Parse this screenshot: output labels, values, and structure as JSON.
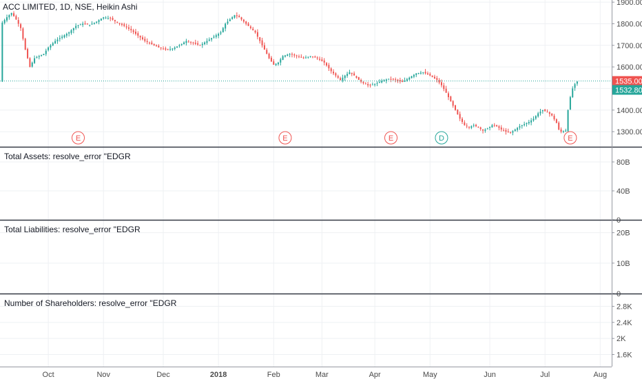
{
  "chart_data": [
    {
      "type": "candlestick",
      "title": "ACC LIMITED, 1D, NSE, Heikin Ashi",
      "ylim": [
        1230,
        1910
      ],
      "y_ticks": [
        {
          "value": 1900,
          "label": "1900.00"
        },
        {
          "value": 1800,
          "label": "1800.00"
        },
        {
          "value": 1700,
          "label": "1700.00"
        },
        {
          "value": 1600,
          "label": "1600.00"
        },
        {
          "value": 1500,
          "label": "1500.00"
        },
        {
          "value": 1400,
          "label": "1400.00"
        },
        {
          "value": 1300,
          "label": "1300.00"
        }
      ],
      "x_ticks": [
        "Oct",
        "Nov",
        "Dec",
        "2018",
        "Feb",
        "Mar",
        "Apr",
        "May",
        "Jun",
        "Jul",
        "Aug"
      ],
      "x_tick_positions": [
        1,
        25,
        51,
        75,
        99,
        120,
        143,
        167,
        193,
        217,
        241
      ],
      "price_path": [
        [
          -19,
          1805
        ],
        [
          -17,
          1830
        ],
        [
          -15,
          1850
        ],
        [
          -13,
          1820
        ],
        [
          -11,
          1780
        ],
        [
          -9,
          1680
        ],
        [
          -7,
          1600
        ],
        [
          -5,
          1640
        ],
        [
          -3,
          1650
        ],
        [
          -1,
          1660
        ],
        [
          1,
          1690
        ],
        [
          4,
          1720
        ],
        [
          7,
          1740
        ],
        [
          10,
          1760
        ],
        [
          13,
          1790
        ],
        [
          16,
          1800
        ],
        [
          19,
          1795
        ],
        [
          22,
          1810
        ],
        [
          25,
          1830
        ],
        [
          28,
          1825
        ],
        [
          31,
          1805
        ],
        [
          34,
          1790
        ],
        [
          37,
          1770
        ],
        [
          40,
          1745
        ],
        [
          43,
          1720
        ],
        [
          46,
          1705
        ],
        [
          49,
          1690
        ],
        [
          52,
          1680
        ],
        [
          55,
          1685
        ],
        [
          58,
          1700
        ],
        [
          61,
          1720
        ],
        [
          64,
          1710
        ],
        [
          67,
          1700
        ],
        [
          70,
          1720
        ],
        [
          73,
          1740
        ],
        [
          76,
          1760
        ],
        [
          78,
          1800
        ],
        [
          80,
          1820
        ],
        [
          82,
          1840
        ],
        [
          84,
          1830
        ],
        [
          86,
          1810
        ],
        [
          88,
          1790
        ],
        [
          91,
          1760
        ],
        [
          93,
          1720
        ],
        [
          95,
          1680
        ],
        [
          97,
          1640
        ],
        [
          99,
          1610
        ],
        [
          101,
          1620
        ],
        [
          103,
          1650
        ],
        [
          106,
          1660
        ],
        [
          109,
          1650
        ],
        [
          112,
          1640
        ],
        [
          115,
          1650
        ],
        [
          118,
          1640
        ],
        [
          121,
          1620
        ],
        [
          124,
          1580
        ],
        [
          126,
          1560
        ],
        [
          128,
          1540
        ],
        [
          130,
          1560
        ],
        [
          132,
          1575
        ],
        [
          134,
          1560
        ],
        [
          136,
          1540
        ],
        [
          138,
          1525
        ],
        [
          140,
          1515
        ],
        [
          143,
          1520
        ],
        [
          146,
          1535
        ],
        [
          149,
          1545
        ],
        [
          152,
          1540
        ],
        [
          155,
          1530
        ],
        [
          158,
          1550
        ],
        [
          161,
          1570
        ],
        [
          164,
          1575
        ],
        [
          167,
          1560
        ],
        [
          170,
          1540
        ],
        [
          172,
          1515
        ],
        [
          174,
          1480
        ],
        [
          176,
          1440
        ],
        [
          178,
          1400
        ],
        [
          180,
          1360
        ],
        [
          182,
          1330
        ],
        [
          184,
          1320
        ],
        [
          186,
          1330
        ],
        [
          188,
          1320
        ],
        [
          190,
          1305
        ],
        [
          192,
          1315
        ],
        [
          194,
          1330
        ],
        [
          196,
          1325
        ],
        [
          198,
          1310
        ],
        [
          200,
          1300
        ],
        [
          202,
          1295
        ],
        [
          204,
          1310
        ],
        [
          206,
          1325
        ],
        [
          208,
          1335
        ],
        [
          210,
          1345
        ],
        [
          212,
          1360
        ],
        [
          214,
          1385
        ],
        [
          216,
          1400
        ],
        [
          218,
          1390
        ],
        [
          220,
          1375
        ],
        [
          222,
          1340
        ],
        [
          223,
          1310
        ],
        [
          224,
          1300
        ],
        [
          226,
          1305
        ],
        [
          227,
          1400
        ],
        [
          228,
          1460
        ],
        [
          229,
          1500
        ],
        [
          230,
          1520
        ],
        [
          231,
          1532
        ]
      ],
      "current_price": {
        "value": 1535,
        "label": "1535.00",
        "color": "#ef5350"
      },
      "last_close": {
        "value": 1532.8,
        "label": "1532.80",
        "color": "#26a69a"
      },
      "events": [
        {
          "letter": "E",
          "position": 14,
          "color": "#ef5350"
        },
        {
          "letter": "E",
          "position": 104,
          "color": "#ef5350"
        },
        {
          "letter": "E",
          "position": 150,
          "color": "#ef5350"
        },
        {
          "letter": "D",
          "position": 172,
          "color": "#26a69a"
        },
        {
          "letter": "E",
          "position": 228,
          "color": "#ef5350"
        }
      ],
      "colors": {
        "up": "#26a69a",
        "down": "#ef5350"
      },
      "grid": true
    },
    {
      "type": "line",
      "title": "Total Assets: resolve_error \"EDGR",
      "ylim": [
        0,
        100
      ],
      "y_ticks": [
        {
          "value": 80,
          "label": "80B"
        },
        {
          "value": 40,
          "label": "40B"
        },
        {
          "value": 0,
          "label": "0"
        }
      ],
      "series": [],
      "grid": true
    },
    {
      "type": "line",
      "title": "Total Liabilities: resolve_error \"EDGR",
      "ylim": [
        0,
        24
      ],
      "y_ticks": [
        {
          "value": 20,
          "label": "20B"
        },
        {
          "value": 10,
          "label": "10B"
        },
        {
          "value": 0,
          "label": "0"
        }
      ],
      "series": [],
      "grid": true
    },
    {
      "type": "line",
      "title": "Number of Shareholders: resolve_error \"EDGR",
      "ylim": [
        1300,
        3100
      ],
      "y_ticks": [
        {
          "value": 2800,
          "label": "2.8K"
        },
        {
          "value": 2400,
          "label": "2.4K"
        },
        {
          "value": 2000,
          "label": "2K"
        },
        {
          "value": 1600,
          "label": "1.6K"
        }
      ],
      "series": [],
      "grid": true
    }
  ]
}
